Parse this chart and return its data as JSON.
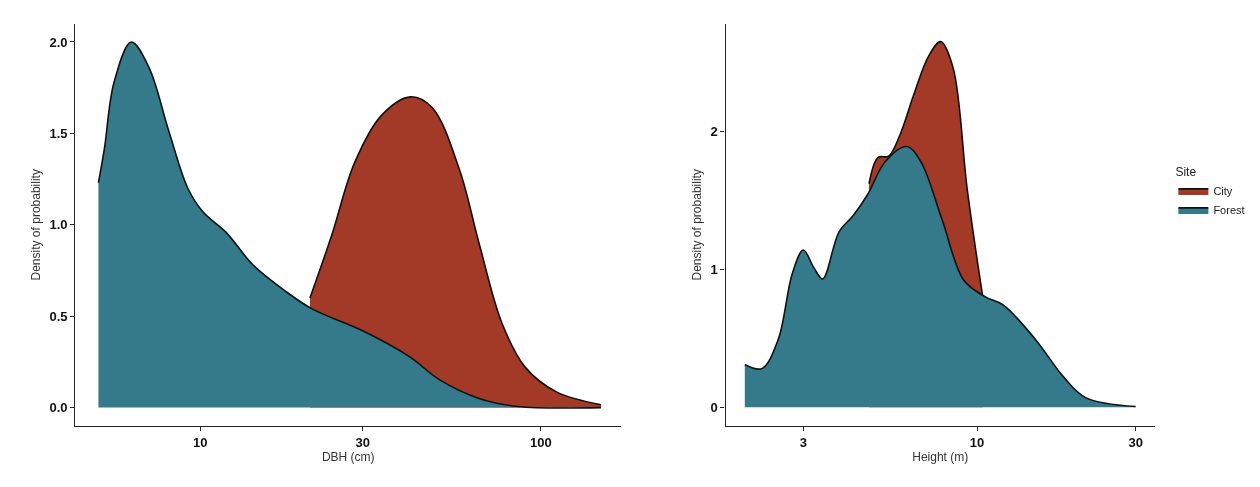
{
  "chart_data": [
    {
      "type": "area",
      "xlabel": "DBH (cm)",
      "ylabel": "Density of probability",
      "log": "x",
      "xlim": [
        4.3,
        172
      ],
      "xticks": [
        10,
        30,
        100
      ],
      "ylim": [
        -0.1,
        2.1
      ],
      "yticks": [
        {
          "value": 0,
          "label": "0.0"
        },
        {
          "value": 0.5,
          "label": "0.5"
        },
        {
          "value": 1,
          "label": "1.0"
        },
        {
          "value": 1.5,
          "label": "1.5"
        },
        {
          "value": 2,
          "label": "2.0"
        }
      ],
      "series": [
        {
          "color": "#a33a28",
          "x": [
            21.0,
            24.3,
            28.4,
            34.1,
            41.5,
            48.0,
            57.7,
            65.8,
            76.9,
            90.0,
            111,
            150
          ],
          "values": [
            0.6,
            0.94,
            1.34,
            1.6,
            1.7,
            1.64,
            1.3,
            0.9,
            0.46,
            0.22,
            0.086,
            0.016
          ]
        },
        {
          "color": "#357a8a",
          "x": [
            5.03,
            5.24,
            5.59,
            6.28,
            7.08,
            8.07,
            9.2,
            10.2,
            11.9,
            14.3,
            17.7,
            21.3,
            30,
            41.0,
            50.6,
            65.8,
            85.5,
            150
          ],
          "values": [
            1.23,
            1.42,
            1.78,
            2.0,
            1.86,
            1.52,
            1.2,
            1.07,
            0.96,
            0.78,
            0.64,
            0.54,
            0.42,
            0.28,
            0.15,
            0.05,
            0.006,
            0.0
          ]
        }
      ]
    },
    {
      "type": "area",
      "xlabel": "Height (m)",
      "ylabel": "Density of probability",
      "log": "x",
      "legend": "right",
      "legend_title": "Site",
      "xlim": [
        1.75,
        34.3
      ],
      "xticks": [
        3,
        10,
        30
      ],
      "ylim": [
        -0.135,
        2.78
      ],
      "yticks": [
        0,
        1,
        2
      ],
      "series": [
        {
          "name": "City",
          "color": "#a33a28",
          "x": [
            4.73,
            5.03,
            5.42,
            5.85,
            6.46,
            7.13,
            7.77,
            8.47,
            9.35,
            10.4
          ],
          "values": [
            1.62,
            1.81,
            1.82,
            1.97,
            2.27,
            2.54,
            2.65,
            2.46,
            1.57,
            0.8
          ]
        },
        {
          "name": "Forest",
          "color": "#357a8a",
          "x": [
            2.0,
            2.25,
            2.52,
            2.78,
            3.0,
            3.23,
            3.43,
            3.84,
            4.24,
            4.68,
            5.29,
            6.14,
            6.77,
            7.87,
            9.12,
            10.6,
            12.0,
            15.0,
            18.2,
            21.2,
            30
          ],
          "values": [
            0.31,
            0.28,
            0.49,
            0.97,
            1.14,
            1.01,
            0.93,
            1.27,
            1.39,
            1.54,
            1.78,
            1.89,
            1.78,
            1.35,
            0.92,
            0.8,
            0.74,
            0.49,
            0.22,
            0.07,
            0.005
          ]
        }
      ]
    }
  ]
}
